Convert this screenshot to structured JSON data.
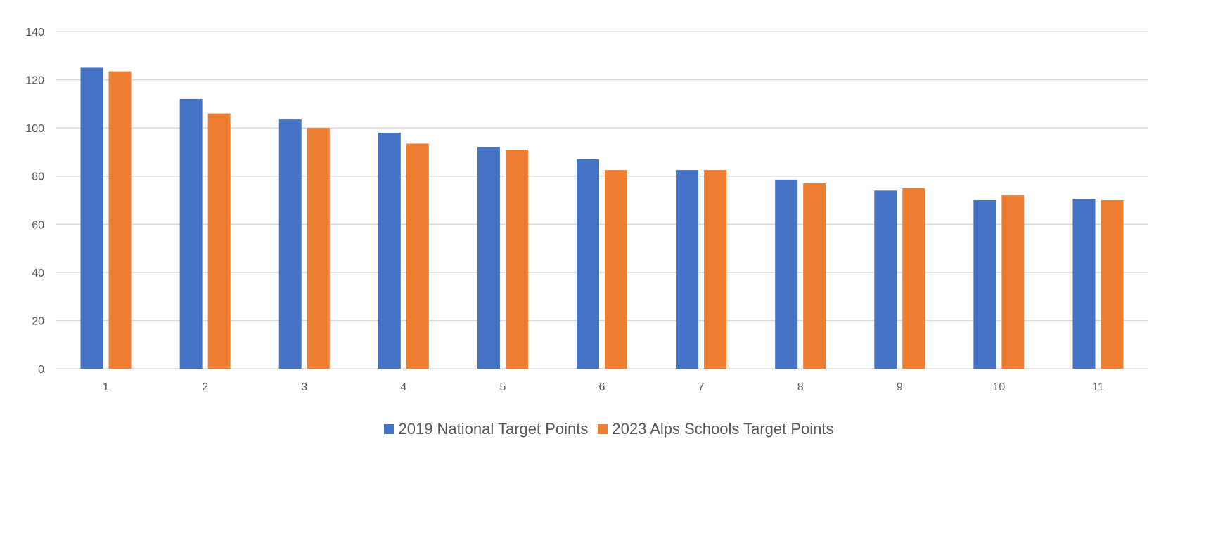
{
  "chart_data": {
    "type": "bar",
    "title": "",
    "xlabel": "",
    "ylabel": "",
    "categories": [
      "1",
      "2",
      "3",
      "4",
      "5",
      "6",
      "7",
      "8",
      "9",
      "10",
      "11"
    ],
    "ylim": [
      0,
      140
    ],
    "yticks": [
      0,
      20,
      40,
      60,
      80,
      100,
      120,
      140
    ],
    "grid": true,
    "legend_position": "bottom",
    "series": [
      {
        "name": "2019 National Target Points",
        "color": "#4472C4",
        "values": [
          125,
          112,
          103.5,
          98,
          92,
          87,
          82.5,
          78.5,
          74,
          70,
          70.5
        ]
      },
      {
        "name": "2023 Alps Schools Target Points",
        "color": "#ED7D31",
        "values": [
          123.5,
          106,
          100,
          93.5,
          91,
          82.5,
          82.5,
          77,
          75,
          72,
          70
        ]
      }
    ]
  }
}
